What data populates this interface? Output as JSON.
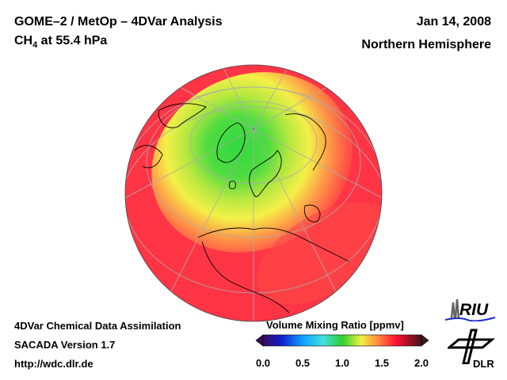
{
  "header": {
    "title": "GOME–2 / MetOp – 4DVar Analysis",
    "species": "CH",
    "species_sub": "4",
    "level": " at 55.4 hPa",
    "date": "Jan 14, 2008",
    "region": "Northern Hemisphere"
  },
  "footer": {
    "line1": "4DVar Chemical Data Assimilation",
    "line2": "SACADA Version 1.7",
    "line3": "http://wdc.dlr.de"
  },
  "colorbar": {
    "title": "Volume Mixing Ratio [ppmv]",
    "ticks": [
      "0.0",
      "0.5",
      "1.0",
      "1.5",
      "2.0"
    ],
    "range": [
      0.0,
      2.0
    ],
    "colors": [
      "#3a0a5a",
      "#1020d0",
      "#10a0ff",
      "#40e0e0",
      "#30d030",
      "#f0f040",
      "#ff9040",
      "#ff1030",
      "#8a1020",
      "#3a1a1a"
    ]
  },
  "logos": {
    "riu": "RIU",
    "dlr": "DLR"
  },
  "map": {
    "projection": "orthographic",
    "field_summary": {
      "polar_min_ppmv": 1.0,
      "background_ppmv": 1.7
    }
  }
}
